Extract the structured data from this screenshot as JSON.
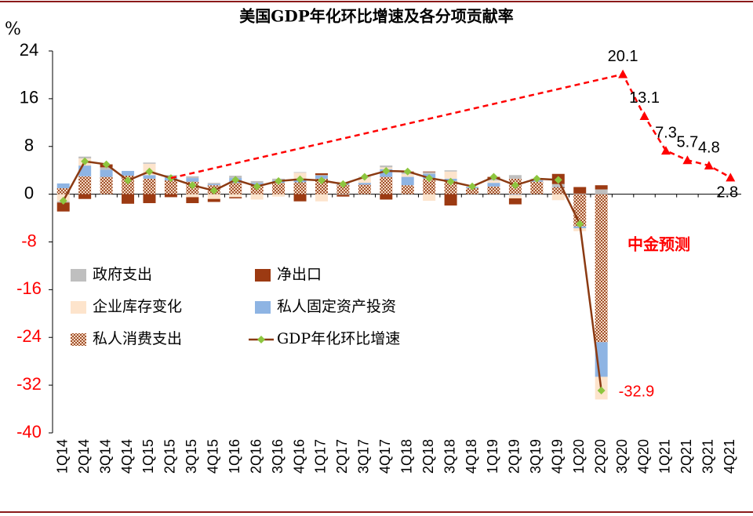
{
  "chart_data": {
    "type": "bar",
    "title": "美国GDP年化环比增速及各分项贡献率",
    "y_label": "%",
    "annotation": "中金预测",
    "categories": [
      "1Q14",
      "2Q14",
      "3Q14",
      "4Q14",
      "1Q15",
      "2Q15",
      "3Q15",
      "4Q15",
      "1Q16",
      "2Q16",
      "3Q16",
      "4Q16",
      "1Q17",
      "2Q17",
      "3Q17",
      "4Q17",
      "1Q18",
      "2Q18",
      "3Q18",
      "4Q18",
      "1Q19",
      "2Q19",
      "3Q19",
      "4Q19",
      "1Q20",
      "2Q20",
      "3Q20",
      "4Q20",
      "1Q21",
      "2Q21",
      "3Q21",
      "4Q21"
    ],
    "ylim": [
      -40,
      24
    ],
    "yticks": [
      24,
      16,
      8,
      0,
      -8,
      -16,
      -24,
      -32,
      -40
    ],
    "series": [
      {
        "name": "私人消费支出",
        "type": "bar",
        "color": "#a0522d",
        "pattern": true,
        "values": [
          1.0,
          3.0,
          2.9,
          3.1,
          2.6,
          2.3,
          2.1,
          1.5,
          1.9,
          1.6,
          1.9,
          2.0,
          2.6,
          1.6,
          1.6,
          2.9,
          1.5,
          2.6,
          2.2,
          1.0,
          1.3,
          2.6,
          2.1,
          1.2,
          -5.4,
          -24.8,
          null,
          null,
          null,
          null,
          null,
          null
        ]
      },
      {
        "name": "私人固定资产投资",
        "type": "bar",
        "color": "#8eb4e3",
        "values": [
          0.8,
          1.8,
          1.2,
          0.8,
          0.6,
          0.5,
          0.6,
          0.2,
          0.8,
          0.3,
          0.4,
          0.6,
          0.5,
          0.3,
          0.3,
          1.3,
          1.4,
          0.8,
          0.4,
          0.2,
          0.6,
          -0.1,
          0.2,
          0.1,
          -0.3,
          -5.8,
          null,
          null,
          null,
          null,
          null,
          null
        ]
      },
      {
        "name": "企业库存变化",
        "type": "bar",
        "color": "#fde4cc",
        "values": [
          -1.2,
          1.2,
          0.0,
          0.0,
          1.9,
          0.0,
          -0.5,
          -0.8,
          -0.5,
          -0.9,
          -0.4,
          1.0,
          -1.2,
          0.2,
          0.9,
          0.3,
          0.5,
          -1.1,
          1.2,
          0.1,
          0.4,
          -0.6,
          0.0,
          -1.0,
          -0.5,
          -3.8,
          null,
          null,
          null,
          null,
          null,
          null
        ]
      },
      {
        "name": "政府支出",
        "type": "bar",
        "color": "#bfbfbf",
        "values": [
          -0.2,
          0.3,
          0.4,
          0.0,
          0.2,
          0.4,
          0.3,
          0.2,
          0.4,
          0.3,
          0.3,
          0.1,
          0.1,
          -0.1,
          0.1,
          0.3,
          0.3,
          0.3,
          0.2,
          0.0,
          0.3,
          0.6,
          0.3,
          0.4,
          0.1,
          0.8,
          null,
          null,
          null,
          null,
          null,
          null
        ]
      },
      {
        "name": "净出口",
        "type": "bar",
        "color": "#9c3a12",
        "values": [
          -1.5,
          -0.8,
          0.5,
          -1.6,
          -1.5,
          -0.5,
          -1.0,
          -0.5,
          -0.2,
          0.0,
          0.0,
          -1.2,
          0.3,
          -0.3,
          0.0,
          -0.9,
          0.1,
          0.1,
          -1.9,
          0.0,
          0.3,
          -1.0,
          0.0,
          1.7,
          1.1,
          0.7,
          null,
          null,
          null,
          null,
          null,
          null
        ]
      },
      {
        "name": "GDP年化环比增速",
        "type": "line",
        "color": "#8b3a12",
        "marker_color": "#8dc63f",
        "values": [
          -1.1,
          5.5,
          5.0,
          2.3,
          3.8,
          2.7,
          1.5,
          0.6,
          2.4,
          1.3,
          2.2,
          2.5,
          2.3,
          1.7,
          2.9,
          3.9,
          3.8,
          2.7,
          2.1,
          1.3,
          2.9,
          1.5,
          2.6,
          2.4,
          -5.0,
          -32.9,
          null,
          null,
          null,
          null,
          null,
          null
        ],
        "value_labels": [
          null,
          null,
          null,
          null,
          null,
          null,
          null,
          null,
          null,
          null,
          null,
          null,
          null,
          null,
          null,
          null,
          null,
          null,
          null,
          null,
          null,
          null,
          null,
          null,
          null,
          "-32.9",
          null,
          null,
          null,
          null,
          null,
          null
        ]
      },
      {
        "type": "line",
        "color": "#ff0000",
        "dashed": true,
        "continues": 5,
        "values": [
          null,
          null,
          null,
          null,
          null,
          null,
          null,
          null,
          null,
          null,
          null,
          null,
          null,
          null,
          null,
          null,
          null,
          null,
          null,
          null,
          null,
          null,
          null,
          null,
          null,
          null,
          20.1,
          13.1,
          7.3,
          5.7,
          4.8,
          2.8
        ],
        "value_labels": [
          null,
          null,
          null,
          null,
          null,
          null,
          null,
          null,
          null,
          null,
          null,
          null,
          null,
          null,
          null,
          null,
          null,
          null,
          null,
          null,
          null,
          null,
          null,
          null,
          null,
          null,
          "20.1",
          "13.1",
          "7.3",
          "5.7",
          "4.8",
          "2.8"
        ]
      }
    ]
  }
}
